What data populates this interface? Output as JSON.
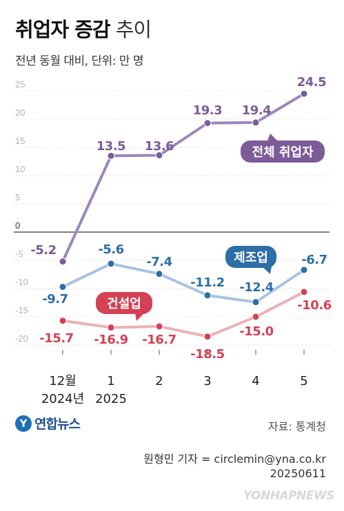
{
  "header": {
    "title_bold": "취업자 증감",
    "title_light": "추이",
    "subtitle": "전년 동월 대비, 단위: 만 명"
  },
  "colors": {
    "total": "#7b5c99",
    "total_line": "#9c86bd",
    "manufacturing": "#2c6ea6",
    "manufacturing_line": "#a9c1e6",
    "construction": "#d34154",
    "construction_line": "#ebb1b4",
    "grid": "#c8c8c8",
    "tick": "#b3b3b3",
    "zero": "#333333"
  },
  "chart_data": {
    "type": "line",
    "categories": [
      "12월\n2024년",
      "1\n2025",
      "2",
      "3",
      "4",
      "5"
    ],
    "ylim": [
      -22,
      26
    ],
    "yticks": [
      25,
      20,
      15,
      10,
      5,
      0,
      -5,
      -10,
      -15,
      -20
    ],
    "grid": true,
    "series": [
      {
        "name": "전체 취업자",
        "values": [
          -5.2,
          13.5,
          13.6,
          19.3,
          19.4,
          24.5
        ],
        "labels": [
          "-5.2",
          "13.5",
          "13.6",
          "19.3",
          "19.4",
          "24.5"
        ]
      },
      {
        "name": "제조업",
        "values": [
          -9.7,
          -5.6,
          -7.4,
          -11.2,
          -12.4,
          -6.7
        ],
        "labels": [
          "-9.7",
          "-5.6",
          "-7.4",
          "-11.2",
          "-12.4",
          "-6.7"
        ]
      },
      {
        "name": "건설업",
        "values": [
          -15.7,
          -16.9,
          -16.7,
          -18.5,
          -15.0,
          -10.6
        ],
        "labels": [
          "-15.7",
          "-16.9",
          "-16.7",
          "-18.5",
          "-15.0",
          "-10.6"
        ]
      }
    ]
  },
  "footer": {
    "logo_mark": "Y",
    "logo_name": "연합뉴스",
    "source": "자료: 통계청",
    "credit": "원형민 기자 = circlemin@yna.co.kr",
    "date": "20250611",
    "watermark": "YONHAPNEWS"
  }
}
